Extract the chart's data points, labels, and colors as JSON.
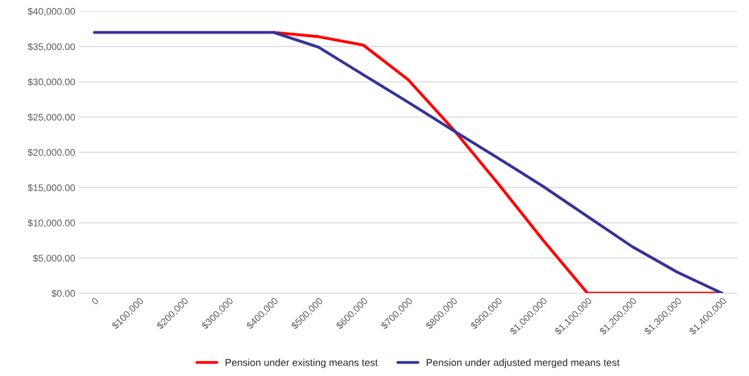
{
  "chart_data": {
    "type": "line",
    "categories": [
      "0",
      "$100,000",
      "$200,000",
      "$300,000",
      "$400,000",
      "$500,000",
      "$600,000",
      "$700,000",
      "$800,000",
      "$900,000",
      "$1,000,000",
      "$1,100,000",
      "$1,200,000",
      "$1,300,000",
      "$1,400,000"
    ],
    "series": [
      {
        "name": "Pension under existing means test",
        "color": "#ff0000",
        "values": [
          null,
          null,
          null,
          null,
          37000,
          36400,
          35200,
          30300,
          23300,
          15600,
          7600,
          0,
          0,
          0,
          0
        ]
      },
      {
        "name": "Pension under adjusted merged means test",
        "color": "#333399",
        "values": [
          37000,
          37000,
          37000,
          37000,
          37000,
          34900,
          31000,
          27100,
          23100,
          19200,
          15200,
          10900,
          6600,
          3000,
          0
        ]
      }
    ],
    "ylim": [
      0,
      40000
    ],
    "yticks": [
      {
        "value": 0,
        "label": "$0.00"
      },
      {
        "value": 5000,
        "label": "$5,000.00"
      },
      {
        "value": 10000,
        "label": "$10,000.00"
      },
      {
        "value": 15000,
        "label": "$15,000.00"
      },
      {
        "value": 20000,
        "label": "$20,000.00"
      },
      {
        "value": 25000,
        "label": "$25,000.00"
      },
      {
        "value": 30000,
        "label": "$30,000.00"
      },
      {
        "value": 35000,
        "label": "$35,000.00"
      },
      {
        "value": 40000,
        "label": "$40,000.00"
      }
    ],
    "grid": "y",
    "legend": "bottom",
    "marker": "none",
    "line_style": "solid"
  }
}
